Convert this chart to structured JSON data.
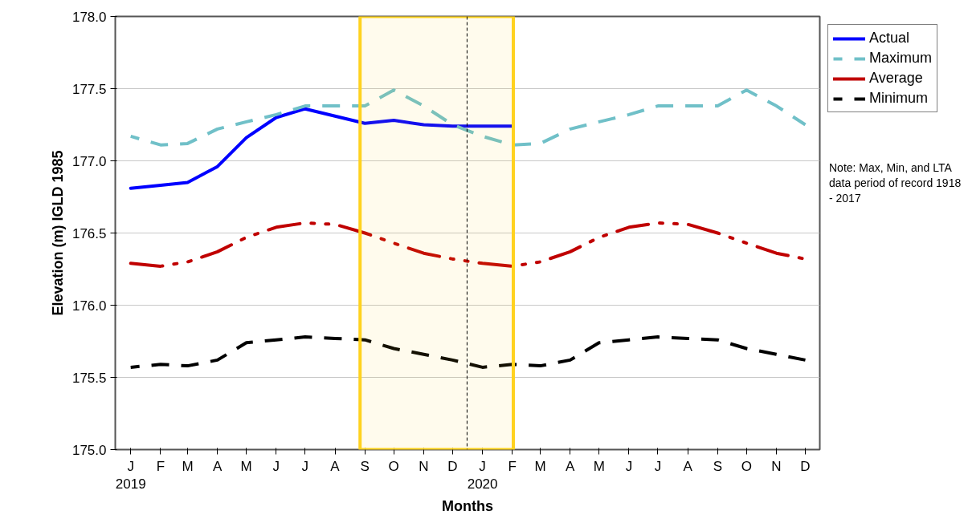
{
  "chart_data": {
    "type": "line",
    "xlabel": "Months",
    "ylabel": "Elevation (m) IGLD 1985",
    "x": [
      "2019-01",
      "2019-02",
      "2019-03",
      "2019-04",
      "2019-05",
      "2019-06",
      "2019-07",
      "2019-08",
      "2019-09",
      "2019-10",
      "2019-11",
      "2019-12",
      "2020-01",
      "2020-02",
      "2020-03",
      "2020-04",
      "2020-05",
      "2020-06",
      "2020-07",
      "2020-08",
      "2020-09",
      "2020-10",
      "2020-11",
      "2020-12"
    ],
    "xlim": [
      "2018-12-16",
      "2020-12-16"
    ],
    "xticks": [
      {
        "value": "2019-01",
        "label": "J\n2019"
      },
      {
        "value": "2019-02",
        "label": "F"
      },
      {
        "value": "2019-03",
        "label": "M"
      },
      {
        "value": "2019-04",
        "label": "A"
      },
      {
        "value": "2019-05",
        "label": "M"
      },
      {
        "value": "2019-06",
        "label": "J"
      },
      {
        "value": "2019-07",
        "label": "J"
      },
      {
        "value": "2019-08",
        "label": "A"
      },
      {
        "value": "2019-09",
        "label": "S"
      },
      {
        "value": "2019-10",
        "label": "O"
      },
      {
        "value": "2019-11",
        "label": "N"
      },
      {
        "value": "2019-12",
        "label": "D"
      },
      {
        "value": "2020-01",
        "label": "J\n2020"
      },
      {
        "value": "2020-02",
        "label": "F"
      },
      {
        "value": "2020-03",
        "label": "M"
      },
      {
        "value": "2020-04",
        "label": "A"
      },
      {
        "value": "2020-05",
        "label": "M"
      },
      {
        "value": "2020-06",
        "label": "J"
      },
      {
        "value": "2020-07",
        "label": "J"
      },
      {
        "value": "2020-08",
        "label": "A"
      },
      {
        "value": "2020-09",
        "label": "S"
      },
      {
        "value": "2020-10",
        "label": "O"
      },
      {
        "value": "2020-11",
        "label": "N"
      },
      {
        "value": "2020-12",
        "label": "D"
      }
    ],
    "ylim": [
      175.0,
      178.0
    ],
    "yticks": [
      {
        "value": 175.0,
        "label": "175.0"
      },
      {
        "value": 175.5,
        "label": "175.5"
      },
      {
        "value": 176.0,
        "label": "176.0"
      },
      {
        "value": 176.5,
        "label": "176.5"
      },
      {
        "value": 177.0,
        "label": "177.0"
      },
      {
        "value": 177.5,
        "label": "177.5"
      },
      {
        "value": 178.0,
        "label": "178.0"
      }
    ],
    "grid": "y",
    "legend": "top right",
    "series": [
      {
        "name": "Actual",
        "line_style": "solid",
        "color": "#0000ff",
        "values": [
          176.81,
          176.83,
          176.85,
          176.96,
          177.16,
          177.3,
          177.36,
          177.31,
          177.26,
          177.28,
          177.25,
          177.24,
          177.24,
          177.24,
          null,
          null,
          null,
          null,
          null,
          null,
          null,
          null,
          null,
          null
        ]
      },
      {
        "name": "Maximum",
        "line_style": "dashed",
        "color": "#70c0c8",
        "values": [
          177.17,
          177.11,
          177.12,
          177.22,
          177.27,
          177.32,
          177.38,
          177.38,
          177.38,
          177.49,
          177.38,
          177.25,
          177.17,
          177.11,
          177.12,
          177.22,
          177.27,
          177.32,
          177.38,
          177.38,
          177.38,
          177.49,
          177.38,
          177.25
        ]
      },
      {
        "name": "Average",
        "line_style": "dashdot",
        "color": "#c00000",
        "values": [
          176.29,
          176.27,
          176.3,
          176.37,
          176.47,
          176.54,
          176.57,
          176.56,
          176.5,
          176.43,
          176.36,
          176.32,
          176.29,
          176.27,
          176.3,
          176.37,
          176.47,
          176.54,
          176.57,
          176.56,
          176.5,
          176.43,
          176.36,
          176.32
        ]
      },
      {
        "name": "Minimum",
        "line_style": "dashed",
        "color": "#000000",
        "values": [
          175.57,
          175.59,
          175.58,
          175.62,
          175.74,
          175.76,
          175.78,
          175.77,
          175.76,
          175.7,
          175.66,
          175.62,
          175.57,
          175.59,
          175.58,
          175.62,
          175.74,
          175.76,
          175.78,
          175.77,
          175.76,
          175.7,
          175.66,
          175.62
        ]
      }
    ],
    "ref_lines": [
      {
        "axis": "x",
        "value": "2019-12-16",
        "color": "#000000",
        "line_style": "dashed"
      }
    ],
    "bands": [
      {
        "axis": "x",
        "from": "2019-08-27",
        "to": "2020-02-02",
        "color": "#ffd21f"
      }
    ],
    "annotations": [
      "Note: Max, Min, and LTA data period of record 1918 - 2017"
    ]
  }
}
